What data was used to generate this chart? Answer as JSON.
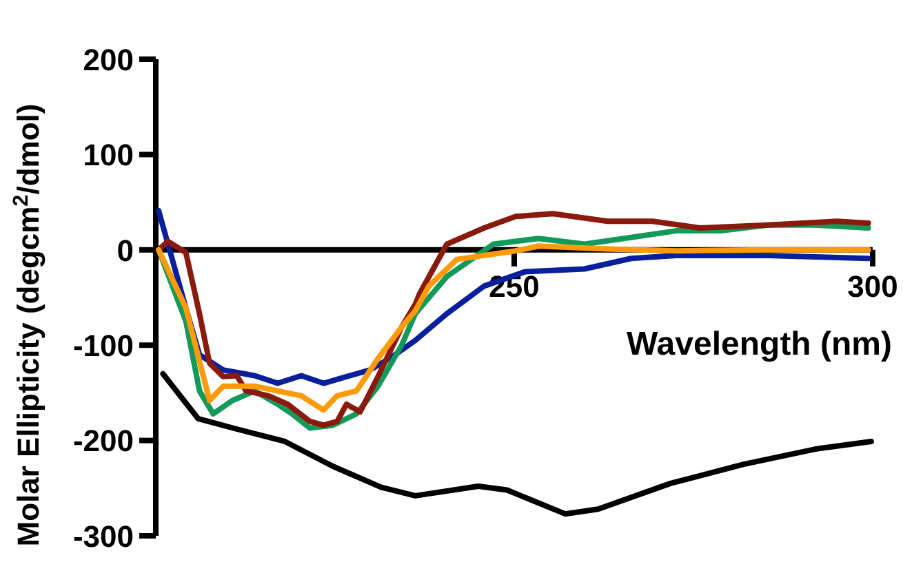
{
  "chart_data": {
    "type": "line",
    "xlabel": "Wavelength (nm)",
    "ylabel": "Molar Ellipticity (degcm$^{2}$/dmol)",
    "xlim": [
      200,
      300
    ],
    "ylim": [
      -300,
      200
    ],
    "xticks": [
      250,
      300
    ],
    "yticks": [
      -300,
      -200,
      -100,
      0,
      100,
      200
    ],
    "marker": "none",
    "line_style": "solid",
    "series": [
      {
        "color": "#0a1f9c",
        "x": [
          200.4,
          204.2,
          206.1,
          209.4,
          213.8,
          217,
          220.3,
          223.4,
          226.6,
          229.9,
          233,
          236.2,
          240.6,
          245.8,
          251.5,
          259.8,
          266.3,
          272.6,
          285.4,
          299.4
        ],
        "values": [
          41,
          -61,
          -110,
          -126,
          -132,
          -140,
          -132,
          -140,
          -133,
          -126,
          -112,
          -95,
          -67,
          -38,
          -23,
          -20,
          -9,
          -6,
          -6,
          -9
        ]
      },
      {
        "color": "#139a5a",
        "x": [
          200.4,
          204.2,
          206.1,
          208,
          210.7,
          213.8,
          217,
          219,
          221.5,
          224.7,
          228,
          231,
          234.3,
          236.2,
          240.6,
          247.1,
          253.4,
          259.8,
          266.3,
          272.6,
          278.9,
          285.4,
          291.8,
          299.4
        ],
        "values": [
          0,
          -75,
          -148,
          -172,
          -158,
          -148,
          -162,
          -172,
          -187,
          -184,
          -172,
          -143,
          -100,
          -67,
          -28,
          6,
          12,
          6,
          13,
          20,
          20,
          26,
          26,
          23
        ]
      },
      {
        "color": "#8b1a0e",
        "x": [
          200.4,
          201.7,
          204.2,
          206.1,
          207.5,
          209.4,
          211.3,
          212.6,
          215.7,
          218.4,
          221.5,
          223.4,
          225.3,
          226.6,
          228.5,
          231,
          234.3,
          236.2,
          236.8,
          240.6,
          245.8,
          250.2,
          255.4,
          263,
          269.3,
          275.9,
          285.4,
          295,
          299.4
        ],
        "values": [
          0,
          9,
          -3,
          -67,
          -119,
          -133,
          -132,
          -148,
          -153,
          -162,
          -180,
          -184,
          -180,
          -162,
          -170,
          -133,
          -81,
          -57,
          -46,
          6,
          23,
          35,
          38,
          30,
          30,
          23,
          26,
          30,
          28
        ]
      },
      {
        "color": "#ff9a0a",
        "x": [
          200.4,
          204.2,
          207.5,
          209.4,
          213.8,
          217,
          220.3,
          223.4,
          225.3,
          228,
          231,
          234.3,
          236.2,
          238.1,
          242,
          250.2,
          253.4,
          263,
          272.6,
          285.4,
          299.4
        ],
        "values": [
          0,
          -61,
          -158,
          -143,
          -143,
          -148,
          -153,
          -168,
          -153,
          -148,
          -114,
          -81,
          -64,
          -38,
          -10,
          -1,
          4,
          1,
          -1,
          0,
          0
        ]
      },
      {
        "color": "#000000",
        "x": [
          201,
          205.9,
          211.3,
          218,
          224.7,
          231.4,
          236.2,
          245,
          249,
          257.1,
          261.7,
          271.8,
          282,
          292,
          299.8
        ],
        "values": [
          -130,
          -177,
          -188,
          -201,
          -227,
          -249,
          -258,
          -248,
          -252,
          -277,
          -272,
          -245,
          -225,
          -209,
          -201
        ]
      }
    ]
  }
}
